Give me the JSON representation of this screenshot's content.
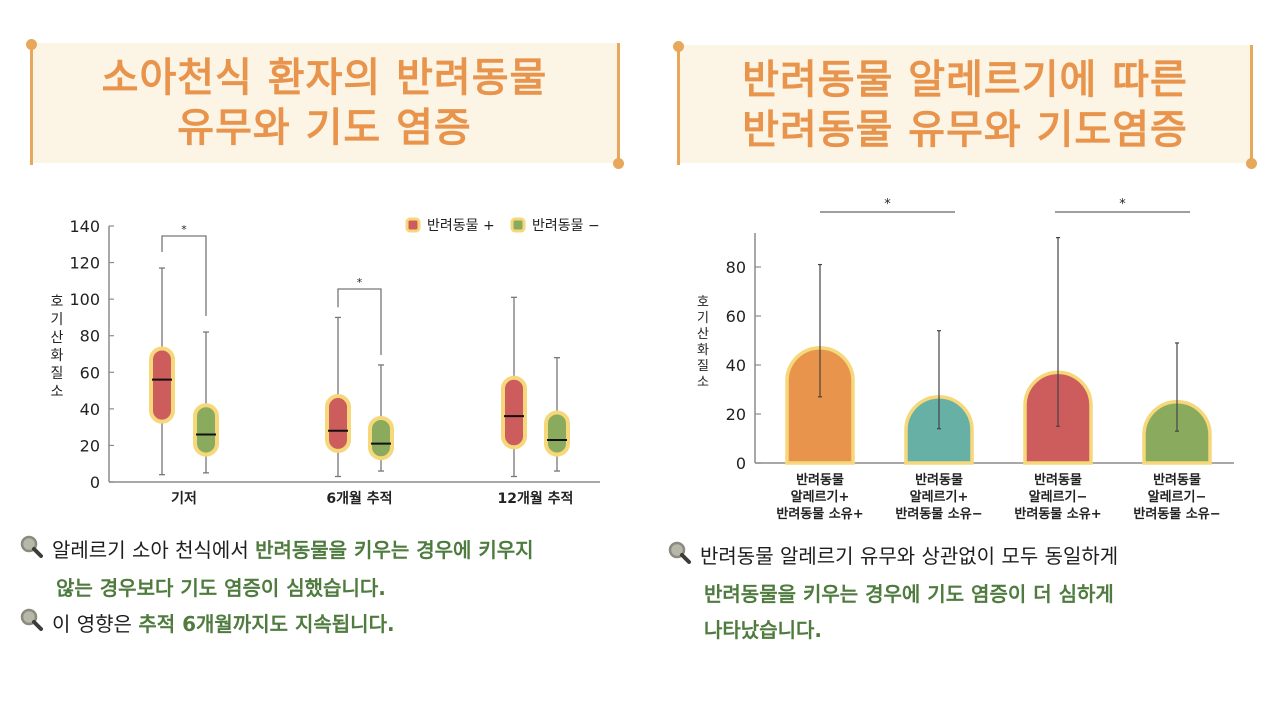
{
  "left_panel": {
    "title_line1": "소아천식 환자의 반려동물",
    "title_line2": "유무와 기도 염증",
    "notes": [
      {
        "icon": "magnifier-icon",
        "plain": "알레르기 소아 천식에서 ",
        "highlight": "반려동물을 키우는 경우에 키우지",
        "line2": "않는 경우보다 기도 염증이 심했습니다."
      },
      {
        "icon": "magnifier-icon",
        "plain": "이 영향은 ",
        "highlight": "추적 6개월까지도 지속됩니다."
      }
    ]
  },
  "right_panel": {
    "title_line1": "반려동물 알레르기에 따른",
    "title_line2": "반려동물 유무와 기도염증",
    "notes": [
      {
        "icon": "magnifier-icon",
        "plain": "반려동물 알레르기 유무와 상관없이 모두 동일하게",
        "highlight_line1": "반려동물을 키우는 경우에 기도 염증이 더 심하게",
        "highlight_line2": "나타났습니다."
      }
    ]
  },
  "colors": {
    "title": "#e8944c",
    "banner_bg": "#fcf4e4",
    "accent_line": "#e8a85c",
    "red": "#cd5c5c",
    "green": "#8aab5e",
    "orange": "#e8944c",
    "teal": "#66b0a6",
    "outline": "#f6d77a",
    "highlight_text": "#4f7b3f"
  },
  "chart_data": [
    {
      "type": "boxplot",
      "title": "",
      "ylabel": "호기산화질소",
      "xlabel": "",
      "ylim": [
        0,
        140
      ],
      "yticks": [
        0,
        20,
        40,
        60,
        80,
        100,
        120,
        140
      ],
      "categories": [
        "기저",
        "6개월 추적",
        "12개월 추적"
      ],
      "legend": [
        "반려동물 +",
        "반려동물 −"
      ],
      "legend_position": "top-right",
      "series": [
        {
          "name": "반려동물 +",
          "color": "#cd5c5c",
          "boxes": [
            {
              "min": 4,
              "q1": 33,
              "median": 56,
              "q3": 73,
              "max": 117
            },
            {
              "min": 3,
              "q1": 17,
              "median": 28,
              "q3": 47,
              "max": 90
            },
            {
              "min": 3,
              "q1": 19,
              "median": 36,
              "q3": 57,
              "max": 101
            }
          ]
        },
        {
          "name": "반려동물 −",
          "color": "#8aab5e",
          "boxes": [
            {
              "min": 5,
              "q1": 15,
              "median": 26,
              "q3": 42,
              "max": 82
            },
            {
              "min": 6,
              "q1": 13,
              "median": 21,
              "q3": 35,
              "max": 64
            },
            {
              "min": 6,
              "q1": 15,
              "median": 23,
              "q3": 38,
              "max": 68
            }
          ]
        }
      ],
      "annotations": [
        {
          "text": "*",
          "between": [
            "기저 반려동물 +",
            "기저 반려동물 −"
          ]
        },
        {
          "text": "*",
          "between": [
            "6개월 추적 반려동물 +",
            "6개월 추적 반려동물 −"
          ]
        }
      ]
    },
    {
      "type": "bar",
      "title": "",
      "ylabel": "호기산화질소",
      "xlabel": "",
      "ylim": [
        0,
        93
      ],
      "yticks": [
        0,
        20,
        40,
        60,
        80
      ],
      "categories": [
        [
          "반려동물",
          "알레르기+",
          "반려동물 소유+"
        ],
        [
          "반려동물",
          "알레르기+",
          "반려동물 소유−"
        ],
        [
          "반려동물",
          "알레르기−",
          "반려동물 소유+"
        ],
        [
          "반려동물",
          "알레르기−",
          "반려동물 소유−"
        ]
      ],
      "values": [
        47,
        27,
        37,
        25
      ],
      "error_low": [
        27,
        14,
        15,
        13
      ],
      "error_high": [
        81,
        54,
        92,
        49
      ],
      "bar_colors": [
        "#e8944c",
        "#66b0a6",
        "#cd5c5c",
        "#8aab5e"
      ],
      "annotations": [
        {
          "text": "*",
          "between": [
            0,
            1
          ]
        },
        {
          "text": "*",
          "between": [
            2,
            3
          ]
        }
      ],
      "grid": false
    }
  ]
}
